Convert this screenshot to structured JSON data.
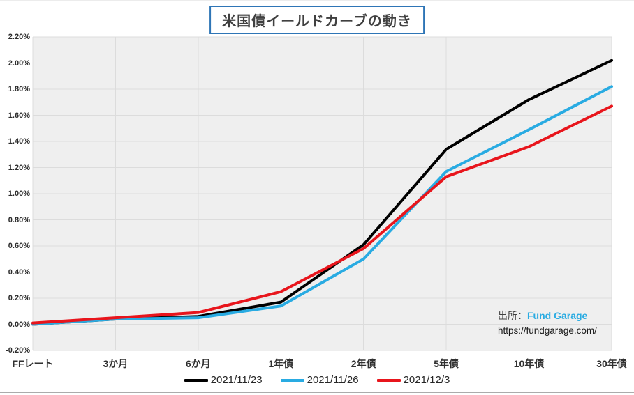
{
  "title": "米国債イールドカーブの動き",
  "source": {
    "prefix": "出所：",
    "name": "Fund Garage",
    "url": "https://fundgarage.com/"
  },
  "colors": {
    "title_border_blue": "#2e75b6",
    "brand_cyan": "#29abe2",
    "plot_background": "#efefef",
    "gridline": "#dcdcdc",
    "bottom_border": "#ababab"
  },
  "chart_data": {
    "type": "line",
    "title": "米国債イールドカーブの動き",
    "categories": [
      "FFレート",
      "3か月",
      "6か月",
      "1年債",
      "2年債",
      "5年債",
      "10年債",
      "30年債"
    ],
    "series": [
      {
        "name": "2021/11/23",
        "color": "#000000",
        "values": [
          0.0,
          0.04,
          0.06,
          0.17,
          0.61,
          1.34,
          1.72,
          2.02
        ]
      },
      {
        "name": "2021/11/26",
        "color": "#29abe2",
        "values": [
          0.0,
          0.04,
          0.05,
          0.14,
          0.5,
          1.17,
          1.49,
          1.82
        ]
      },
      {
        "name": "2021/12/3",
        "color": "#e8151c",
        "values": [
          0.01,
          0.05,
          0.09,
          0.25,
          0.58,
          1.13,
          1.36,
          1.67
        ]
      }
    ],
    "ylim": [
      -0.2,
      2.2
    ],
    "y_step": 0.2,
    "y_tick_labels": [
      "2.20%",
      "2.00%",
      "1.80%",
      "1.60%",
      "1.40%",
      "1.20%",
      "1.00%",
      "0.80%",
      "0.60%",
      "0.40%",
      "0.20%",
      "0.00%",
      "-0.20%"
    ],
    "x_grid": true,
    "y_grid": true,
    "legend_position": "bottom",
    "line_width": 4
  }
}
